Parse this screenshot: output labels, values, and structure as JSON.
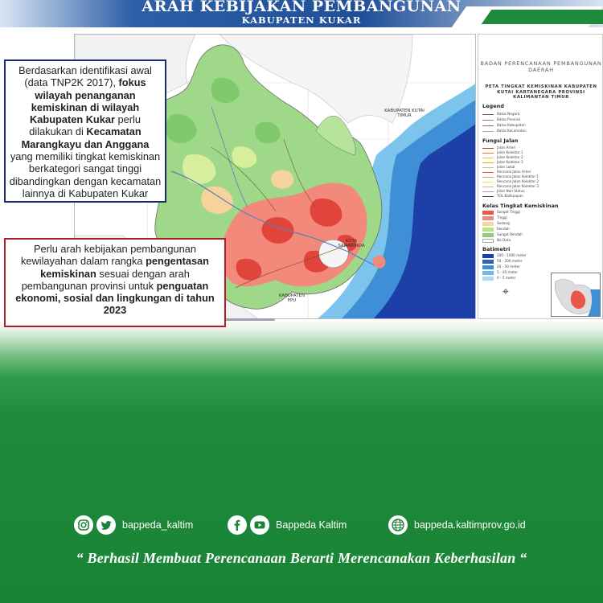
{
  "header": {
    "title": "ARAH KEBIJAKAN PEMBANGUNAN",
    "subtitle": "KABUPATEN KUKAR"
  },
  "box1": {
    "p1": "Berdasarkan identifikasi awal (data TNP2K 2017), ",
    "b1": "fokus wilayah penanganan kemiskinan di wilayah Kabupaten Kukar",
    "p2": " perlu dilakukan di ",
    "b2": "Kecamatan Marangkayu dan Anggana",
    "p3": " yang memiliki tingkat kemiskinan berkategori sangat tinggi dibandingkan dengan kecamatan lainnya di Kabupaten Kukar"
  },
  "box2": {
    "p1": "Perlu arah kebijakan pembangunan kewilayahan dalam rangka ",
    "b1": "pengentasan kemiskinan",
    "p2": " sesuai dengan arah pembangunan provinsi untuk ",
    "b2": "penguatan ekonomi, sosial dan lingkungan di tahun 2023"
  },
  "map": {
    "labels": {
      "kutai_timur": "KABUPATEN KUTAI TIMUR",
      "samarinda": "KOTA SAMARINDA",
      "ppu": "KABUPATEN PPU"
    }
  },
  "legend": {
    "agency": "BADAN PERENCANAAN PEMBANGUNAN DAERAH",
    "map_title": "PETA TINGKAT KEMISKINAN KABUPATEN KUTAI KARTANEGARA PROVINSI KALIMANTAN TIMUR",
    "legend_heading": "Legend",
    "boundaries": [
      "Batas Negara",
      "Batas Provinsi",
      "Batas Kabupaten",
      "Batas Kecamatan"
    ],
    "roads_heading": "Fungsi Jalan",
    "roads": [
      "Jalan Arteri",
      "Jalan Kolektor 1",
      "Jalan Kolektor 2",
      "Jalan Kolektor 3",
      "Jalan Lokal",
      "Rencana Jalan Arteri",
      "Rencana Jalan Kolektor 1",
      "Rencana Jalan Kolektor 2",
      "Rencana Jalan Kolektor 3",
      "Jalan Non Status",
      "TOL Balikpapan"
    ],
    "poverty_heading": "Kelas Tingkat Kemiskinan",
    "poverty": [
      "Sangat Tinggi",
      "Tinggi",
      "Sedang",
      "Rendah",
      "Sangat Rendah",
      "No Data"
    ],
    "bathy_heading": "Batimetri",
    "bathy": [
      "200 - 1000 meter",
      "50 - 200 meter",
      "20 - 50 meter",
      "5 - 20 meter",
      "0 - 5 meter"
    ]
  },
  "colors": {
    "banner_blue": "#1f4f98",
    "box1_border": "#1b2a6b",
    "box2_border": "#b11d2a",
    "footer_green": "#1a8436",
    "poverty_very_high": "#e8574a",
    "poverty_high": "#f28a78",
    "poverty_medium": "#f6d7a0",
    "poverty_low": "#b8e08e",
    "poverty_very_low": "#8cd07a",
    "sea_deep": "#1d3fa8",
    "sea_shallow": "#6fb8e8"
  },
  "footer": {
    "instagram_icon": "instagram-icon",
    "twitter_icon": "twitter-icon",
    "facebook_icon": "facebook-icon",
    "youtube_icon": "youtube-icon",
    "web_icon": "globe-icon",
    "handle1": "bappeda_kaltim",
    "handle2": "Bappeda Kaltim",
    "website": "bappeda.kaltimprov.go.id",
    "tagline": "“ Berhasil  Membuat Perencanaan Berarti Merencanakan Keberhasilan “"
  }
}
